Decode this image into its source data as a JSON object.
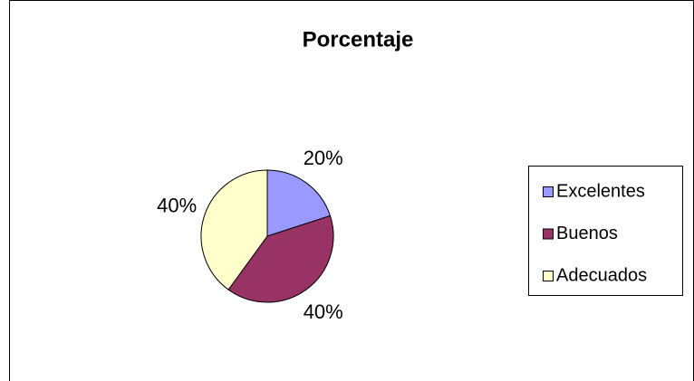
{
  "chart_data": {
    "type": "pie",
    "title": "Porcentaje",
    "categories": [
      "Excelentes",
      "Buenos",
      "Adecuados"
    ],
    "values": [
      20,
      40,
      40
    ],
    "value_labels": [
      "20%",
      "40%",
      "40%"
    ],
    "colors": [
      "#9999ff",
      "#993366",
      "#ffffcc"
    ],
    "legend": "right"
  }
}
